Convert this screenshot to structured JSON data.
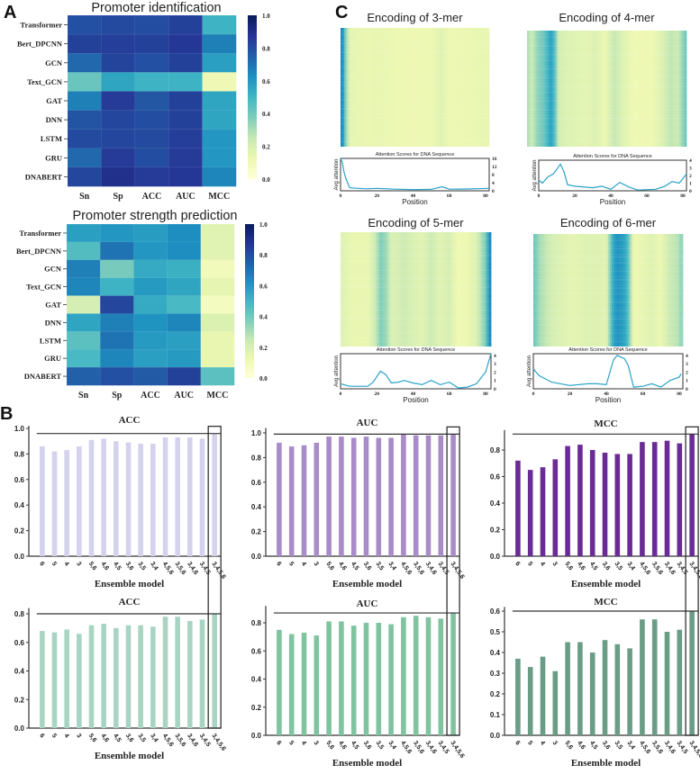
{
  "panel_labels": {
    "a": "A",
    "b": "B",
    "c": "C"
  },
  "colors": {
    "colormap": "YlGnBu",
    "attention_line": "#2aa3c8",
    "axis": "#333333"
  },
  "chart_data": [
    {
      "type": "heatmap",
      "title": "Promoter identification",
      "rows": [
        "Transformer",
        "Bert_DPCNN",
        "GCN",
        "Text_GCN",
        "GAT",
        "DNN",
        "LSTM",
        "GRU",
        "DNABERT"
      ],
      "columns": [
        "Sn",
        "Sp",
        "ACC",
        "AUC",
        "MCC"
      ],
      "values": [
        [
          0.85,
          0.87,
          0.86,
          0.9,
          0.55
        ],
        [
          0.9,
          0.91,
          0.9,
          0.93,
          0.72
        ],
        [
          0.78,
          0.89,
          0.85,
          0.9,
          0.62
        ],
        [
          0.45,
          0.6,
          0.55,
          0.55,
          0.12
        ],
        [
          0.72,
          0.92,
          0.83,
          0.9,
          0.6
        ],
        [
          0.84,
          0.88,
          0.86,
          0.9,
          0.6
        ],
        [
          0.87,
          0.88,
          0.87,
          0.91,
          0.65
        ],
        [
          0.78,
          0.92,
          0.86,
          0.92,
          0.65
        ],
        [
          0.88,
          0.96,
          0.92,
          0.93,
          0.7
        ]
      ],
      "colorbar_ticks": [
        "1.0",
        "0.8",
        "0.6",
        "0.4",
        "0.2",
        "0.0"
      ],
      "vlim": [
        0,
        1
      ]
    },
    {
      "type": "heatmap",
      "title": "Promoter strength prediction",
      "rows": [
        "Transformer",
        "Bert_DPCNN",
        "GCN",
        "Text_GCN",
        "GAT",
        "DNN",
        "LSTM",
        "GRU",
        "DNABERT"
      ],
      "columns": [
        "Sn",
        "Sp",
        "ACC",
        "AUC",
        "MCC"
      ],
      "values": [
        [
          0.62,
          0.65,
          0.63,
          0.68,
          0.18
        ],
        [
          0.5,
          0.75,
          0.65,
          0.68,
          0.18
        ],
        [
          0.72,
          0.42,
          0.58,
          0.56,
          0.1
        ],
        [
          0.7,
          0.55,
          0.64,
          0.6,
          0.16
        ],
        [
          0.22,
          0.88,
          0.58,
          0.52,
          0.08
        ],
        [
          0.6,
          0.72,
          0.66,
          0.7,
          0.2
        ],
        [
          0.48,
          0.75,
          0.64,
          0.62,
          0.15
        ],
        [
          0.52,
          0.7,
          0.62,
          0.64,
          0.15
        ],
        [
          0.8,
          0.85,
          0.82,
          0.9,
          0.48
        ]
      ],
      "colorbar_ticks": [
        "1.0",
        "0.8",
        "0.6",
        "0.4",
        "0.2",
        "0.0"
      ],
      "vlim": [
        0,
        1
      ]
    },
    {
      "type": "heatmap+line",
      "title": "Encoding of 3-mer",
      "line_title": "Attention Scores for DNA Sequence",
      "xlabel": "Position",
      "ylabel": "Avg attention",
      "xticks": [
        "0",
        "20",
        "40",
        "60",
        "80"
      ],
      "yticks": [
        "0",
        "4",
        "8",
        "12",
        "16"
      ],
      "xlim": [
        0,
        82
      ],
      "ylim": [
        0,
        16
      ],
      "points": [
        [
          0,
          16
        ],
        [
          1,
          14
        ],
        [
          2,
          9
        ],
        [
          3,
          6
        ],
        [
          5,
          1.5
        ],
        [
          10,
          1.2
        ],
        [
          15,
          1.0
        ],
        [
          20,
          1.2
        ],
        [
          30,
          0.8
        ],
        [
          40,
          0.6
        ],
        [
          50,
          0.7
        ],
        [
          56,
          2
        ],
        [
          60,
          0.8
        ],
        [
          70,
          0.9
        ],
        [
          82,
          1.2
        ]
      ]
    },
    {
      "type": "heatmap+line",
      "title": "Encoding of 4-mer",
      "line_title": "Attention Scores for DNA Sequence",
      "xlabel": "Position",
      "ylabel": "Avg attention",
      "xticks": [
        "0",
        "20",
        "40",
        "60",
        "80"
      ],
      "yticks": [
        "0",
        "1",
        "2",
        "3",
        "4"
      ],
      "xlim": [
        0,
        82
      ],
      "ylim": [
        0,
        4
      ],
      "points": [
        [
          0,
          1.4
        ],
        [
          2,
          1
        ],
        [
          5,
          1.8
        ],
        [
          8,
          2.2
        ],
        [
          10,
          2.8
        ],
        [
          12,
          3.5
        ],
        [
          14,
          2.5
        ],
        [
          16,
          0.8
        ],
        [
          20,
          0.6
        ],
        [
          30,
          0.4
        ],
        [
          35,
          0.6
        ],
        [
          40,
          0.2
        ],
        [
          45,
          1.1
        ],
        [
          50,
          0.5
        ],
        [
          55,
          0.1
        ],
        [
          65,
          0.2
        ],
        [
          70,
          0.6
        ],
        [
          74,
          1.2
        ],
        [
          78,
          1
        ],
        [
          82,
          2.2
        ]
      ]
    },
    {
      "type": "heatmap+line",
      "title": "Encoding of 5-mer",
      "line_title": "Attention Scores for DNA Sequence",
      "xlabel": "Position",
      "ylabel": "Avg attention",
      "xticks": [
        "0",
        "20",
        "40",
        "60",
        "80"
      ],
      "yticks": [
        "0",
        "1",
        "2",
        "3",
        "4"
      ],
      "xlim": [
        0,
        83
      ],
      "ylim": [
        0,
        4.2
      ],
      "points": [
        [
          0,
          0.6
        ],
        [
          5,
          0.3
        ],
        [
          10,
          0.3
        ],
        [
          15,
          0.3
        ],
        [
          18,
          0.8
        ],
        [
          22,
          2.1
        ],
        [
          25,
          1.7
        ],
        [
          28,
          0.7
        ],
        [
          32,
          0.8
        ],
        [
          35,
          1.0
        ],
        [
          40,
          0.7
        ],
        [
          45,
          0.5
        ],
        [
          50,
          1.0
        ],
        [
          55,
          0.5
        ],
        [
          60,
          0.8
        ],
        [
          65,
          0.1
        ],
        [
          70,
          0.2
        ],
        [
          75,
          0.6
        ],
        [
          80,
          2.0
        ],
        [
          83,
          4.2
        ]
      ]
    },
    {
      "type": "heatmap+line",
      "title": "Encoding of 6-mer",
      "line_title": "Attention Scores for DNA Sequence",
      "xlabel": "Position",
      "ylabel": "Avg attention",
      "xticks": [
        "0",
        "20",
        "40",
        "60",
        "80"
      ],
      "yticks": [
        "0",
        "1",
        "2",
        "3",
        "4"
      ],
      "xlim": [
        0,
        82
      ],
      "ylim": [
        0,
        4.2
      ],
      "points": [
        [
          0,
          2.4
        ],
        [
          3,
          1.6
        ],
        [
          10,
          0.8
        ],
        [
          20,
          0.4
        ],
        [
          30,
          0.6
        ],
        [
          35,
          0.6
        ],
        [
          40,
          0.5
        ],
        [
          44,
          3.5
        ],
        [
          46,
          4.0
        ],
        [
          50,
          3.6
        ],
        [
          52,
          2.8
        ],
        [
          55,
          0.2
        ],
        [
          60,
          0.3
        ],
        [
          65,
          0.6
        ],
        [
          70,
          0.2
        ],
        [
          75,
          1.0
        ],
        [
          80,
          1.4
        ],
        [
          81,
          1.8
        ]
      ]
    },
    {
      "type": "bar",
      "title": "ACC",
      "xlabel": "Ensemble model",
      "color": "#d4d2ec",
      "categories": [
        "6",
        "5",
        "4",
        "3",
        "5,6",
        "4,6",
        "4,5",
        "3,6",
        "3,5",
        "3,4",
        "4,5,6",
        "3,5,6",
        "3,4,6",
        "3,4,5",
        "3,4,5,6"
      ],
      "values": [
        0.86,
        0.82,
        0.83,
        0.86,
        0.91,
        0.92,
        0.9,
        0.89,
        0.88,
        0.88,
        0.93,
        0.93,
        0.93,
        0.92,
        0.96
      ],
      "yticks": [
        "0.0",
        "0.2",
        "0.4",
        "0.6",
        "0.8",
        "1.0"
      ],
      "ylim": [
        0,
        1.02
      ],
      "highlight": "3,4,5,6"
    },
    {
      "type": "bar",
      "title": "AUC",
      "xlabel": "Ensemble model",
      "color": "#a98bc8",
      "categories": [
        "6",
        "5",
        "4",
        "3",
        "5,6",
        "4,6",
        "4,5",
        "3,6",
        "3,5",
        "3,4",
        "4,5,6",
        "3,5,6",
        "3,4,6",
        "3,4,5",
        "3,4,5,6"
      ],
      "values": [
        0.92,
        0.89,
        0.9,
        0.92,
        0.97,
        0.97,
        0.96,
        0.97,
        0.96,
        0.96,
        0.99,
        0.98,
        0.98,
        0.98,
        0.99
      ],
      "yticks": [
        "0.0",
        "0.2",
        "0.4",
        "0.6",
        "0.8",
        "1.0"
      ],
      "ylim": [
        0,
        1.04
      ],
      "highlight": "3,4,5,6"
    },
    {
      "type": "bar",
      "title": "MCC",
      "xlabel": "Ensemble model",
      "color": "#6a2b95",
      "categories": [
        "6",
        "5",
        "4",
        "3",
        "5,6",
        "4,6",
        "4,5",
        "3,6",
        "3,5",
        "3,4",
        "4,5,6",
        "3,5,6",
        "3,4,6",
        "3,4,5",
        "3,4,5,6"
      ],
      "values": [
        0.72,
        0.65,
        0.67,
        0.73,
        0.83,
        0.84,
        0.8,
        0.78,
        0.77,
        0.77,
        0.86,
        0.86,
        0.87,
        0.85,
        0.92
      ],
      "yticks": [
        "0.0",
        "0.2",
        "0.4",
        "0.6",
        "0.8"
      ],
      "ylim": [
        0,
        0.95
      ],
      "highlight": "3,4,5,6"
    },
    {
      "type": "bar",
      "title": "ACC",
      "xlabel": "Ensemble model",
      "color": "#a9d4c3",
      "categories": [
        "6",
        "5",
        "4",
        "3",
        "5,6",
        "4,6",
        "4,5",
        "3,6",
        "3,5",
        "3,4",
        "4,5,6",
        "3,5,6",
        "3,4,6",
        "3,4,5",
        "3,4,5,6"
      ],
      "values": [
        0.68,
        0.67,
        0.69,
        0.66,
        0.72,
        0.73,
        0.7,
        0.72,
        0.72,
        0.71,
        0.78,
        0.78,
        0.75,
        0.76,
        0.8
      ],
      "yticks": [
        "0.0",
        "0.2",
        "0.4",
        "0.6",
        "0.8"
      ],
      "ylim": [
        0,
        0.84
      ],
      "highlight": "3,4,5,6"
    },
    {
      "type": "bar",
      "title": "AUC",
      "xlabel": "Ensemble model",
      "color": "#80c3a0",
      "categories": [
        "6",
        "5",
        "4",
        "3",
        "5,6",
        "4,6",
        "4,5",
        "3,6",
        "3,5",
        "3,4",
        "4,5,6",
        "3,5,6",
        "3,4,6",
        "3,4,5",
        "3,4,5,6"
      ],
      "values": [
        0.75,
        0.72,
        0.73,
        0.71,
        0.81,
        0.81,
        0.78,
        0.8,
        0.8,
        0.79,
        0.84,
        0.85,
        0.84,
        0.83,
        0.87
      ],
      "yticks": [
        "0.0",
        "0.2",
        "0.4",
        "0.6",
        "0.8"
      ],
      "ylim": [
        0,
        0.92
      ],
      "highlight": "3,4,5,6"
    },
    {
      "type": "bar",
      "title": "MCC",
      "xlabel": "Ensemble model",
      "color": "#6a9c86",
      "categories": [
        "6",
        "5",
        "4",
        "3",
        "5,6",
        "4,6",
        "4,5",
        "3,6",
        "3,5",
        "3,4",
        "4,5,6",
        "3,5,6",
        "3,4,6",
        "3,4,5",
        "3,4,5,6"
      ],
      "values": [
        0.37,
        0.33,
        0.38,
        0.31,
        0.45,
        0.45,
        0.4,
        0.46,
        0.44,
        0.42,
        0.56,
        0.56,
        0.5,
        0.51,
        0.6
      ],
      "yticks": [
        "0.0",
        "0.1",
        "0.2",
        "0.3",
        "0.4",
        "0.5",
        "0.6"
      ],
      "ylim": [
        0,
        0.62
      ],
      "highlight": "3,4,5,6"
    }
  ]
}
